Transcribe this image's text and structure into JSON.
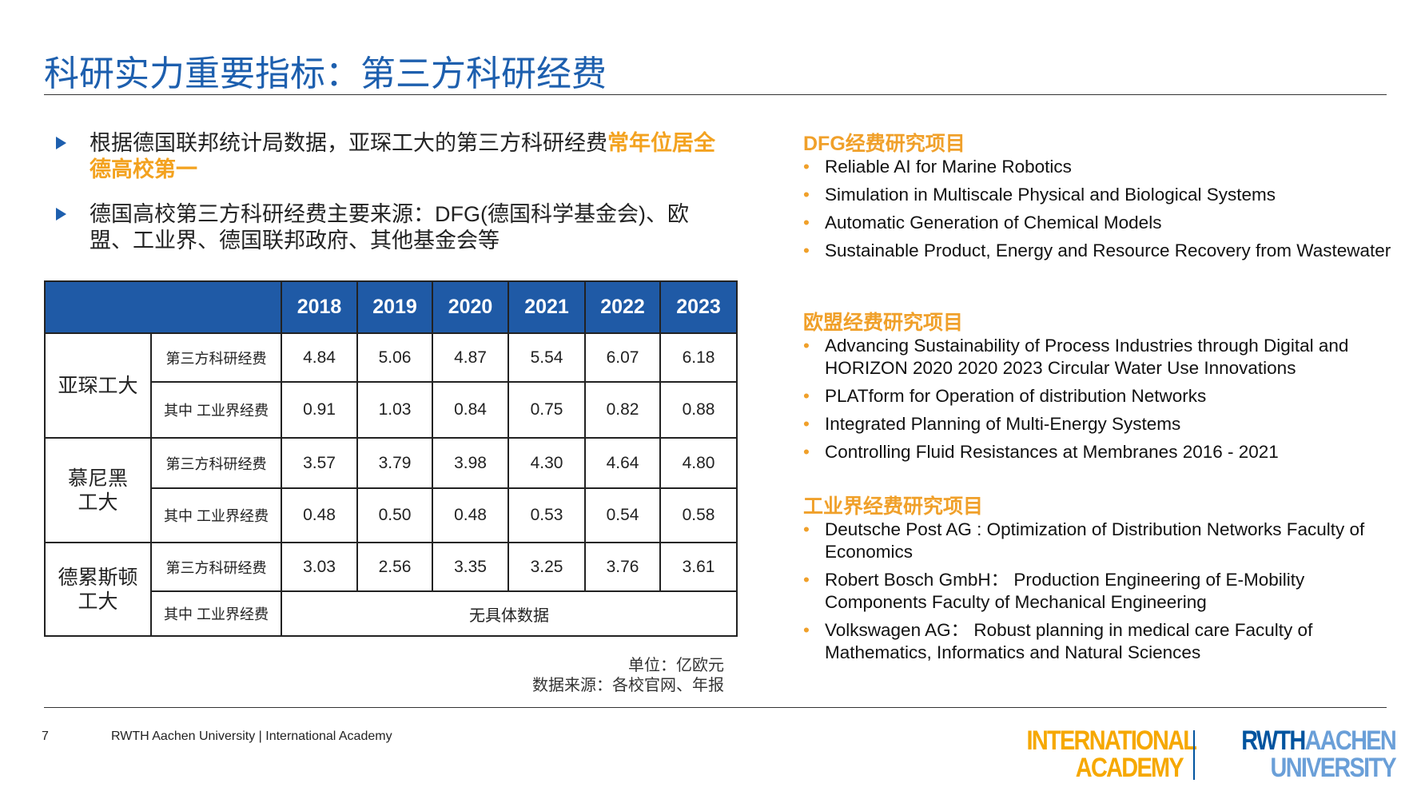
{
  "header": {
    "title": "科研实力重要指标：第三方科研经费"
  },
  "bullets": [
    {
      "text": "根据德国联邦统计局数据，亚琛工大的第三方科研经费",
      "highlight": "常年位居全德高校第一"
    },
    {
      "text": "德国高校第三方科研经费主要来源：DFG(德国科学基金会)、欧盟、工业界、德国联邦政府、其他基金会等"
    }
  ],
  "table": {
    "columns": [
      "2018",
      "2019",
      "2020",
      "2021",
      "2022",
      "2023"
    ],
    "groups": [
      {
        "name": [
          "亚琛工大"
        ],
        "rows": [
          {
            "label": "第三方科研经费",
            "values": [
              "4.84",
              "5.06",
              "4.87",
              "5.54",
              "6.07",
              "6.18"
            ]
          },
          {
            "label": "其中 工业界经费",
            "values": [
              "0.91",
              "1.03",
              "0.84",
              "0.75",
              "0.82",
              "0.88"
            ]
          }
        ]
      },
      {
        "name": [
          "慕尼黑",
          "工大"
        ],
        "rows": [
          {
            "label": "第三方科研经费",
            "values": [
              "3.57",
              "3.79",
              "3.98",
              "4.30",
              "4.64",
              "4.80"
            ]
          },
          {
            "label": "其中 工业界经费",
            "values": [
              "0.48",
              "0.50",
              "0.48",
              "0.53",
              "0.54",
              "0.58"
            ]
          }
        ]
      },
      {
        "name": [
          "德累斯顿",
          "工大"
        ],
        "rows": [
          {
            "label": "第三方科研经费",
            "values": [
              "3.03",
              "2.56",
              "3.35",
              "3.25",
              "3.76",
              "3.61"
            ]
          },
          {
            "label": "其中 工业界经费",
            "note": "无具体数据"
          }
        ]
      }
    ]
  },
  "notes": [
    "单位：亿欧元",
    "数据来源：各校官网、年报"
  ],
  "projects": [
    {
      "heading": "DFG经费研究项目",
      "items": [
        "Reliable AI for Marine Robotics",
        "Simulation in Multiscale Physical and Biological Systems",
        "Automatic Generation of Chemical Models",
        "Sustainable Product, Energy and Resource Recovery from Wastewater"
      ]
    },
    {
      "heading": "欧盟经费研究项目",
      "items": [
        "Advancing Sustainability of Process Industries through Digital and HORIZON 2020 2020 2023 Circular Water Use Innovations",
        "PLATform for Operation of distribution Networks",
        "Integrated Planning of Multi-Energy Systems",
        "Controlling Fluid Resistances at Membranes 2016 - 2021"
      ]
    },
    {
      "heading": "工业界经费研究项目",
      "items": [
        "Deutsche Post AG : Optimization of Distribution Networks Faculty of Economics",
        "Robert Bosch GmbH： Production Engineering of E-Mobility Components Faculty of Mechanical Engineering",
        "Volkswagen AG： Robust planning in medical care Faculty of Mathematics, Informatics and Natural Sciences"
      ]
    }
  ],
  "footer": {
    "page": "7",
    "text": "RWTH Aachen University | International Academy"
  },
  "logo": {
    "left": [
      "INTERNATIONAL",
      "ACADEMY"
    ],
    "right": [
      "RWTH",
      "AACHEN",
      "UNIVERSITY"
    ]
  }
}
